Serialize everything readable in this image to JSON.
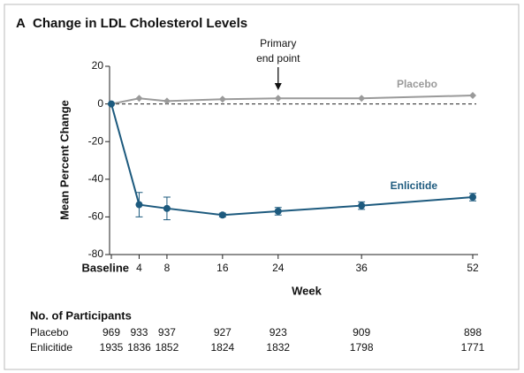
{
  "chart_data": {
    "type": "line",
    "panel_label": "A",
    "title": "Change in LDL Cholesterol Levels",
    "ylabel": "Mean Percent Change",
    "xlabel": "Week",
    "xlim": [
      0,
      52
    ],
    "xticks": [
      {
        "value": 0,
        "label": "Baseline"
      },
      4,
      8,
      16,
      24,
      36,
      52
    ],
    "ylim": [
      -80,
      20
    ],
    "yticks": [
      20,
      0,
      -20,
      -40,
      -60,
      -80
    ],
    "x": [
      0,
      4,
      8,
      16,
      24,
      36,
      52
    ],
    "series": [
      {
        "name": "Placebo",
        "color": "#9a9a9a",
        "marker": "diamond",
        "values": [
          0,
          3,
          1.5,
          2.5,
          3,
          3,
          4.5
        ]
      },
      {
        "name": "Enlicitide",
        "color": "#1d5a7e",
        "marker": "circle",
        "values": [
          0,
          -53.5,
          -55.5,
          -59,
          -57,
          -54,
          -49.5
        ],
        "errors": [
          0,
          6.5,
          6,
          1,
          2,
          2,
          2
        ]
      }
    ],
    "annotation": {
      "lines": [
        "Primary",
        "end point"
      ],
      "x": 24
    },
    "participants": {
      "title": "No. of Participants",
      "rows": [
        {
          "name": "Placebo",
          "counts": [
            969,
            933,
            937,
            927,
            923,
            909,
            898
          ]
        },
        {
          "name": "Enlicitide",
          "counts": [
            1935,
            1836,
            1852,
            1824,
            1832,
            1798,
            1771
          ]
        }
      ]
    }
  }
}
